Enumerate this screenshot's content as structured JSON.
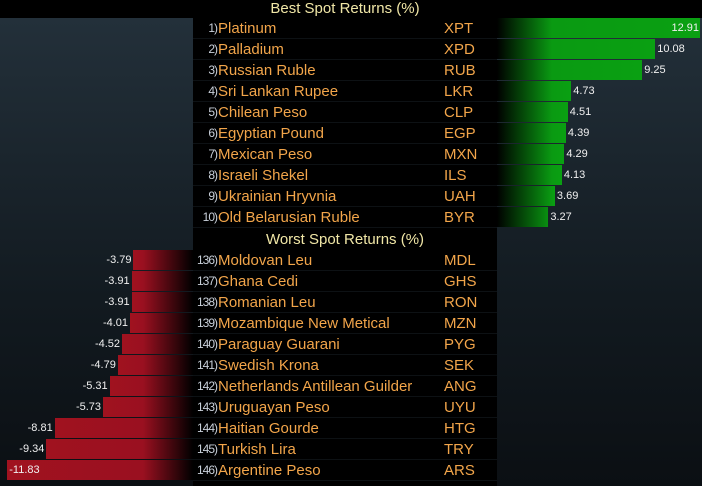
{
  "chart_data": {
    "type": "bar",
    "orientation": "horizontal",
    "best": {
      "title": "Best Spot Returns (%)",
      "ranks": [
        "1)",
        "2)",
        "3)",
        "4)",
        "5)",
        "6)",
        "7)",
        "8)",
        "9)",
        "10)"
      ],
      "names": [
        "Platinum",
        "Palladium",
        "Russian Ruble",
        "Sri Lankan Rupee",
        "Chilean Peso",
        "Egyptian Pound",
        "Mexican Peso",
        "Israeli Shekel",
        "Ukrainian Hryvnia",
        "Old Belarusian Ruble"
      ],
      "codes": [
        "XPT",
        "XPD",
        "RUB",
        "LKR",
        "CLP",
        "EGP",
        "MXN",
        "ILS",
        "UAH",
        "BYR"
      ],
      "values": [
        12.91,
        10.08,
        9.25,
        4.73,
        4.51,
        4.39,
        4.29,
        4.13,
        3.69,
        3.27
      ],
      "labels": [
        "12.91",
        "10.08",
        "9.25",
        "4.73",
        "4.51",
        "4.39",
        "4.29",
        "4.13",
        "3.69",
        "3.27"
      ],
      "color": "#0aa012"
    },
    "worst": {
      "title": "Worst Spot Returns (%)",
      "ranks": [
        "136)",
        "137)",
        "138)",
        "139)",
        "140)",
        "141)",
        "142)",
        "143)",
        "144)",
        "145)",
        "146)"
      ],
      "names": [
        "Moldovan Leu",
        "Ghana Cedi",
        "Romanian Leu",
        "Mozambique New Metical",
        "Paraguay Guarani",
        "Swedish Krona",
        "Netherlands Antillean Guilder",
        "Uruguayan Peso",
        "Haitian Gourde",
        "Turkish Lira",
        "Argentine Peso"
      ],
      "codes": [
        "MDL",
        "GHS",
        "RON",
        "MZN",
        "PYG",
        "SEK",
        "ANG",
        "UYU",
        "HTG",
        "TRY",
        "ARS"
      ],
      "values": [
        -3.79,
        -3.91,
        -3.91,
        -4.01,
        -4.52,
        -4.79,
        -5.31,
        -5.73,
        -8.81,
        -9.34,
        -11.83
      ],
      "labels": [
        "-3.79",
        "-3.91",
        "-3.91",
        "-4.01",
        "-4.52",
        "-4.79",
        "-5.31",
        "-5.73",
        "-8.81",
        "-9.34",
        "-11.83"
      ],
      "color": "#a0121f"
    },
    "xlim": [
      -11.83,
      12.91
    ]
  }
}
